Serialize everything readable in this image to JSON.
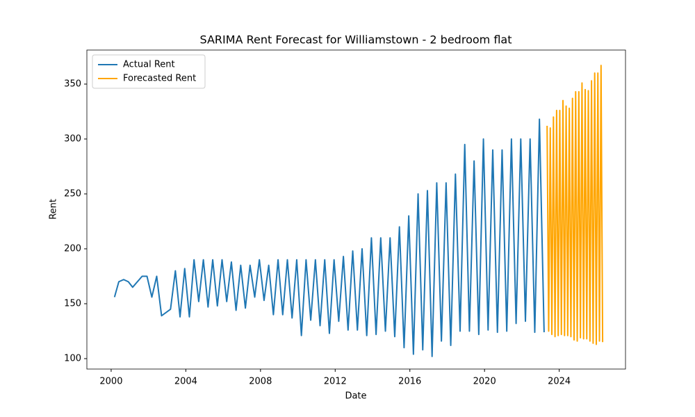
{
  "chart_data": {
    "type": "line",
    "title": "SARIMA Rent Forecast for Williamstown - 2 bedroom flat",
    "x_label": "Date",
    "y_label": "Rent",
    "xlim": [
      1998.7,
      2027.55
    ],
    "xticks": [
      2000,
      2004,
      2008,
      2012,
      2016,
      2020,
      2024
    ],
    "ylim": [
      90.5,
      381
    ],
    "yticks": [
      100,
      150,
      200,
      250,
      300,
      350
    ],
    "legend": "upper left",
    "series": [
      {
        "name": "Actual Rent",
        "color": "#1f77b4",
        "x": [
          2000.18,
          2000.41,
          2000.67,
          2000.92,
          2001.15,
          2001.66,
          2001.92,
          2002.18,
          2002.44,
          2002.7,
          2003.18,
          2003.44,
          2003.69,
          2003.94,
          2004.19,
          2004.44,
          2004.69,
          2004.94,
          2005.19,
          2005.44,
          2005.69,
          2005.94,
          2006.19,
          2006.44,
          2006.69,
          2006.94,
          2007.19,
          2007.44,
          2007.69,
          2007.94,
          2008.19,
          2008.44,
          2008.69,
          2008.94,
          2009.19,
          2009.44,
          2009.69,
          2009.94,
          2010.19,
          2010.44,
          2010.69,
          2010.94,
          2011.19,
          2011.44,
          2011.69,
          2011.94,
          2012.19,
          2012.44,
          2012.69,
          2012.94,
          2013.19,
          2013.44,
          2013.69,
          2013.94,
          2014.19,
          2014.44,
          2014.69,
          2014.94,
          2015.19,
          2015.44,
          2015.69,
          2015.94,
          2016.19,
          2016.44,
          2016.69,
          2016.94,
          2017.19,
          2017.44,
          2017.69,
          2017.94,
          2018.19,
          2018.44,
          2018.69,
          2018.94,
          2019.19,
          2019.44,
          2019.69,
          2019.94,
          2020.19,
          2020.44,
          2020.69,
          2020.94,
          2021.19,
          2021.44,
          2021.69,
          2021.94,
          2022.19,
          2022.44,
          2022.69,
          2022.94,
          2023.19
        ],
        "values": [
          156,
          170,
          172,
          170,
          165,
          175,
          175,
          156,
          175,
          139,
          145,
          180,
          138,
          182,
          138,
          190,
          152,
          190,
          147,
          190,
          148,
          190,
          152,
          188,
          144,
          185,
          146,
          185,
          156,
          190,
          153,
          185,
          140,
          190,
          140,
          190,
          137,
          190,
          121,
          190,
          135,
          190,
          130,
          190,
          123,
          190,
          134,
          193,
          126,
          198,
          126,
          200,
          121,
          210,
          122,
          210,
          125,
          210,
          120,
          220,
          110,
          230,
          104,
          250,
          108,
          253,
          102,
          260,
          116,
          260,
          112,
          268,
          125,
          295,
          125,
          280,
          122,
          300,
          126,
          290,
          124,
          290,
          125,
          300,
          132,
          300,
          134,
          300,
          124,
          318,
          124
        ]
      },
      {
        "name": "Forecasted Rent",
        "color": "#ffa500",
        "x": [
          2023.35,
          2023.435,
          2023.52,
          2023.605,
          2023.69,
          2023.775,
          2023.86,
          2023.945,
          2024.03,
          2024.115,
          2024.2,
          2024.285,
          2024.37,
          2024.455,
          2024.54,
          2024.625,
          2024.71,
          2024.795,
          2024.88,
          2024.965,
          2025.05,
          2025.135,
          2025.22,
          2025.305,
          2025.39,
          2025.475,
          2025.56,
          2025.645,
          2025.73,
          2025.815,
          2025.9,
          2025.985,
          2026.07,
          2026.155,
          2026.24,
          2026.325
        ],
        "values": [
          312,
          125,
          310,
          122,
          320,
          120,
          326,
          121,
          326,
          122,
          335,
          121,
          330,
          121,
          328,
          120,
          337,
          117,
          343,
          116,
          343,
          119,
          351,
          118,
          345,
          118,
          344,
          116,
          353,
          114,
          360,
          113,
          360,
          116,
          367,
          115
        ]
      }
    ]
  }
}
